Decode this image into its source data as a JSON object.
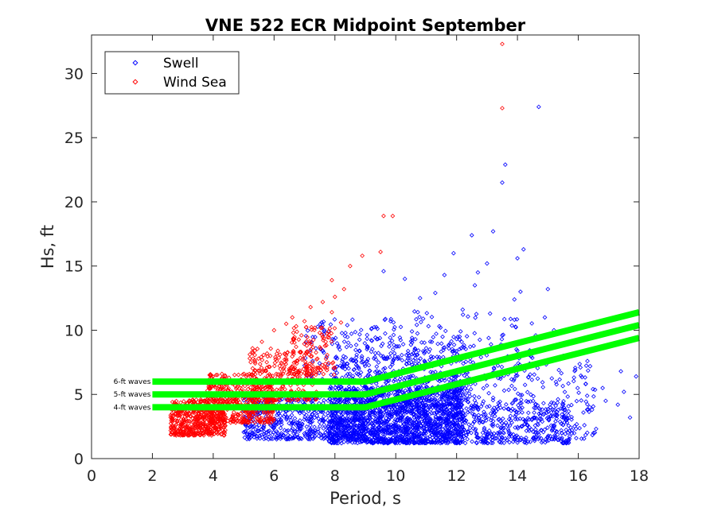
{
  "chart_data": {
    "type": "scatter",
    "title": "VNE 522 ECR Midpoint September",
    "xlabel": "Period, s",
    "ylabel": "Hs, ft",
    "xlim": [
      0,
      18
    ],
    "ylim": [
      0,
      33
    ],
    "xticks": [
      0,
      2,
      4,
      6,
      8,
      10,
      12,
      14,
      16,
      18
    ],
    "yticks": [
      0,
      5,
      10,
      15,
      20,
      25,
      30
    ],
    "grid": false,
    "legend_position": "top-left",
    "colors": {
      "swell": "#0000ff",
      "wind_sea": "#ff0000",
      "threshold": "#00ff00",
      "axis": "#262626"
    },
    "series": [
      {
        "name": "Swell",
        "marker": "diamond",
        "color": "#0000ff",
        "points": [
          [
            14.7,
            27.4
          ],
          [
            13.5,
            21.5
          ],
          [
            13.6,
            22.9
          ],
          [
            13.2,
            17.7
          ],
          [
            12.5,
            17.4
          ],
          [
            14.2,
            16.3
          ],
          [
            14.0,
            15.6
          ],
          [
            11.9,
            16.0
          ],
          [
            13.0,
            15.2
          ],
          [
            12.7,
            14.5
          ],
          [
            9.6,
            14.6
          ],
          [
            10.3,
            14.0
          ],
          [
            11.6,
            14.3
          ],
          [
            12.6,
            13.5
          ],
          [
            14.1,
            13.0
          ],
          [
            15.0,
            13.2
          ],
          [
            13.9,
            12.4
          ],
          [
            10.8,
            12.5
          ],
          [
            11.3,
            12.9
          ],
          [
            12.2,
            11.6
          ],
          [
            13.1,
            11.3
          ],
          [
            14.9,
            11.0
          ],
          [
            16.1,
            10.2
          ],
          [
            15.2,
            10.0
          ],
          [
            14.6,
            9.6
          ],
          [
            17.4,
            6.8
          ],
          [
            17.9,
            6.4
          ],
          [
            17.7,
            3.2
          ],
          [
            16.9,
            4.5
          ],
          [
            17.3,
            4.2
          ],
          [
            16.5,
            2.0
          ],
          [
            16.2,
            2.6
          ],
          [
            15.6,
            1.4
          ],
          [
            17.5,
            5.2
          ],
          [
            16.8,
            5.5
          ],
          [
            10.4,
            7.8
          ],
          [
            11.0,
            8.6
          ],
          [
            9.8,
            9.0
          ],
          [
            9.2,
            10.1
          ],
          [
            8.8,
            8.4
          ],
          [
            10.9,
            10.9
          ],
          [
            12.1,
            9.5
          ],
          [
            13.4,
            8.7
          ],
          [
            12.8,
            7.9
          ],
          [
            11.5,
            7.2
          ],
          [
            14.4,
            7.4
          ],
          [
            15.5,
            8.0
          ],
          [
            15.9,
            6.9
          ],
          [
            16.3,
            7.6
          ]
        ],
        "clusters": [
          {
            "x": [
              7.8,
              12.2
            ],
            "y": [
              1.2,
              5.6
            ],
            "n": 1300,
            "seed": 11
          },
          {
            "x": [
              5.0,
              9.0
            ],
            "y": [
              1.5,
              5.0
            ],
            "n": 600,
            "seed": 12
          },
          {
            "x": [
              9.0,
              15.8
            ],
            "y": [
              1.2,
              4.6
            ],
            "n": 600,
            "seed": 13
          },
          {
            "x": [
              8.0,
              12.5
            ],
            "y": [
              4.0,
              9.5
            ],
            "n": 420,
            "seed": 14
          },
          {
            "x": [
              11.5,
              16.6
            ],
            "y": [
              1.5,
              7.5
            ],
            "n": 240,
            "seed": 15
          },
          {
            "x": [
              7.0,
              11.0
            ],
            "y": [
              6.0,
              11.0
            ],
            "n": 160,
            "seed": 16
          },
          {
            "x": [
              10.5,
              14.5
            ],
            "y": [
              6.0,
              11.5
            ],
            "n": 110,
            "seed": 17
          }
        ]
      },
      {
        "name": "Wind Sea",
        "marker": "diamond",
        "color": "#ff0000",
        "points": [
          [
            13.5,
            32.3
          ],
          [
            13.5,
            27.3
          ],
          [
            9.6,
            18.9
          ],
          [
            9.9,
            18.9
          ],
          [
            9.5,
            16.1
          ],
          [
            8.9,
            15.8
          ],
          [
            8.5,
            15.0
          ],
          [
            7.9,
            13.9
          ],
          [
            8.3,
            13.2
          ],
          [
            8.0,
            12.6
          ],
          [
            7.6,
            12.2
          ],
          [
            7.2,
            11.8
          ],
          [
            7.9,
            11.4
          ],
          [
            8.2,
            10.6
          ],
          [
            6.6,
            11.0
          ],
          [
            6.4,
            10.5
          ],
          [
            7.0,
            10.7
          ],
          [
            6.0,
            10.0
          ],
          [
            6.9,
            9.6
          ],
          [
            7.5,
            9.8
          ],
          [
            5.6,
            9.1
          ]
        ],
        "clusters": [
          {
            "x": [
              2.6,
              4.4
            ],
            "y": [
              1.8,
              4.6
            ],
            "n": 500,
            "seed": 21
          },
          {
            "x": [
              3.8,
              6.0
            ],
            "y": [
              2.8,
              6.6
            ],
            "n": 450,
            "seed": 22
          },
          {
            "x": [
              5.2,
              7.4
            ],
            "y": [
              4.5,
              8.6
            ],
            "n": 240,
            "seed": 23
          },
          {
            "x": [
              6.5,
              8.0
            ],
            "y": [
              6.5,
              10.4
            ],
            "n": 110,
            "seed": 24
          }
        ]
      }
    ],
    "threshold_lines": [
      {
        "label": "4-ft waves",
        "x": [
          2,
          9,
          18
        ],
        "y": [
          4.0,
          4.0,
          9.4
        ]
      },
      {
        "label": "5-ft waves",
        "x": [
          2,
          9,
          18
        ],
        "y": [
          5.0,
          5.0,
          10.4
        ]
      },
      {
        "label": "6-ft waves",
        "x": [
          2,
          9,
          18
        ],
        "y": [
          6.0,
          6.0,
          11.4
        ]
      }
    ]
  }
}
